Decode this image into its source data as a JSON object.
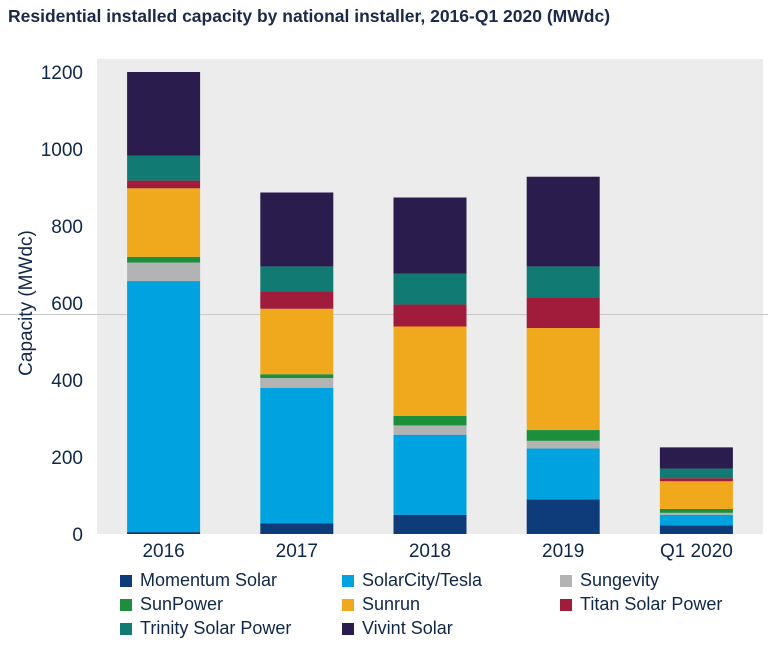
{
  "title": "Residential installed capacity by national installer, 2016-Q1 2020 (MWdc)",
  "chart_data": {
    "type": "bar",
    "stacked": true,
    "title": "Residential installed capacity by national installer, 2016-Q1 2020 (MWdc)",
    "xlabel": "",
    "ylabel": "Capacity (MWdc)",
    "ylim": [
      0,
      1200
    ],
    "yticks": [
      0,
      200,
      400,
      600,
      800,
      1000,
      1200
    ],
    "categories": [
      "2016",
      "2017",
      "2018",
      "2019",
      "Q1 2020"
    ],
    "legend_position": "bottom",
    "series": [
      {
        "name": "Momentum Solar",
        "color": "#0e3b7a",
        "values": [
          5,
          28,
          50,
          90,
          22
        ]
      },
      {
        "name": "SolarCity/Tesla",
        "color": "#00a3e0",
        "values": [
          652,
          352,
          208,
          132,
          28
        ]
      },
      {
        "name": "Sungevity",
        "color": "#b3b3b3",
        "values": [
          48,
          25,
          24,
          20,
          5
        ]
      },
      {
        "name": "SunPower",
        "color": "#1d8f3c",
        "values": [
          15,
          10,
          25,
          28,
          10
        ]
      },
      {
        "name": "Sunrun",
        "color": "#f0a81c",
        "values": [
          178,
          170,
          232,
          265,
          72
        ]
      },
      {
        "name": "Titan Solar Power",
        "color": "#a01c3a",
        "values": [
          20,
          45,
          57,
          78,
          8
        ]
      },
      {
        "name": "Trinity Solar Power",
        "color": "#117a72",
        "values": [
          65,
          65,
          80,
          82,
          25
        ]
      },
      {
        "name": "Vivint Solar",
        "color": "#2a1c4c",
        "values": [
          217,
          192,
          198,
          233,
          55
        ]
      }
    ]
  }
}
